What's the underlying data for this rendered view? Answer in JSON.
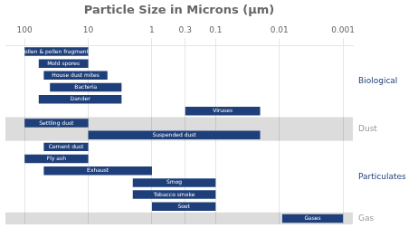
{
  "chart_data": {
    "type": "bar",
    "orientation": "horizontal",
    "title": "Particle Size in Microns (μm)",
    "log": "x",
    "categories": [
      "Pollen & pollen fragments",
      "Mold spores",
      "House dust mites",
      "Bacteria",
      "Dander",
      "Viruses",
      "Settling dust",
      "Suspended dust",
      "Cement dust",
      "Fly ash",
      "Exhaust",
      "Smog",
      "Tobacco smoke",
      "Soot",
      "Gases"
    ],
    "values": [
      [
        10,
        100
      ],
      [
        10,
        60
      ],
      [
        5,
        50
      ],
      [
        3,
        40
      ],
      [
        3,
        60
      ],
      [
        0.02,
        0.3
      ],
      [
        10,
        100
      ],
      [
        0.02,
        10
      ],
      [
        10,
        50
      ],
      [
        10,
        100
      ],
      [
        1,
        50
      ],
      [
        0.1,
        2
      ],
      [
        0.1,
        2
      ],
      [
        0.1,
        1
      ],
      [
        0.001,
        0.009
      ]
    ],
    "bar_groups": [
      "Biological",
      "Biological",
      "Biological",
      "Biological",
      "Biological",
      "Biological",
      "Dust",
      "Dust",
      "Particulates",
      "Particulates",
      "Particulates",
      "Particulates",
      "Particulates",
      "Particulates",
      "Gas"
    ],
    "groups": [
      {
        "name": "Biological",
        "label_color": "#1F3F7A",
        "background": "#FFFFFF"
      },
      {
        "name": "Dust",
        "label_color": "#999999",
        "background": "#DCDCDC"
      },
      {
        "name": "Particulates",
        "label_color": "#1F3F7A",
        "background": "#FFFFFF"
      },
      {
        "name": "Gas",
        "label_color": "#999999",
        "background": "#DCDCDC"
      }
    ],
    "color": "#1F3F7A",
    "xlim": [
      200,
      0.0007
    ],
    "xticks": [
      100,
      10,
      1,
      0.3,
      0.1,
      0.01,
      0.001
    ],
    "grid": true,
    "tick_labels": "x"
  }
}
